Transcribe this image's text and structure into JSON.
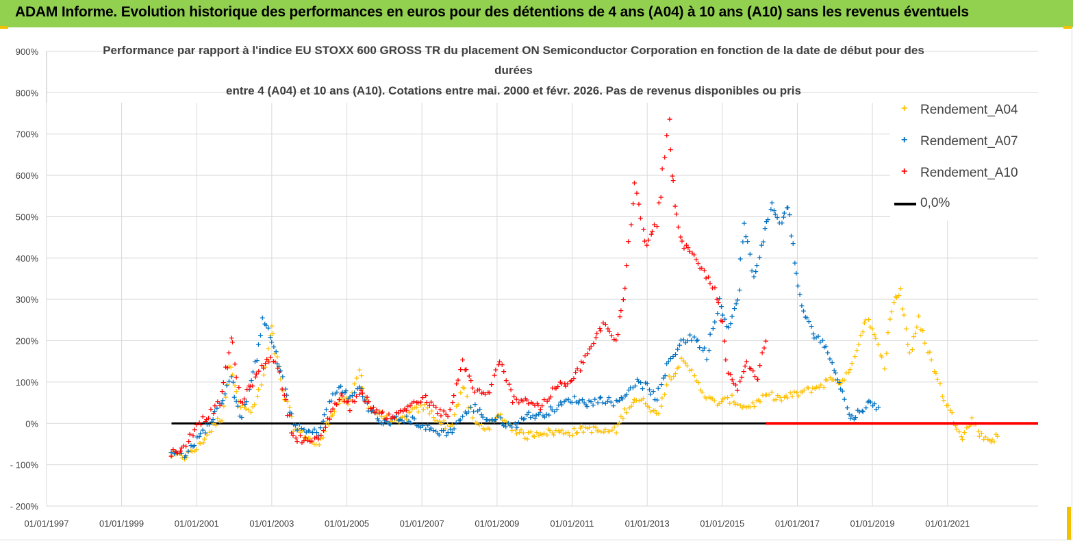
{
  "banner": {
    "title": "ADAM Informe. Evolution historique des performances en euros pour des détentions de 4 ans (A04) à 10 ans (A10) sans les revenus éventuels",
    "color": "#92d050"
  },
  "chart_data": {
    "type": "scatter",
    "title_lines": [
      "Performance par rapport à l'indice EU STOXX 600 GROSS TR  du placement ON Semiconductor Corporation en fonction de la date de début pour des",
      "durées",
      "entre 4 (A04) et 10 ans (A10). Cotations entre mai. 2000 et févr. 2026. Pas de revenus disponibles ou pris"
    ],
    "xlabel": "",
    "ylabel": "",
    "x_tick_labels": [
      "01/01/1997",
      "01/01/1999",
      "01/01/2001",
      "01/01/2003",
      "01/01/2005",
      "01/01/2007",
      "01/01/2009",
      "01/01/2011",
      "01/01/2013",
      "01/01/2015",
      "01/01/2017",
      "01/01/2019",
      "01/01/2021"
    ],
    "y_tick_labels": [
      "900%",
      "800%",
      "700%",
      "600%",
      "500%",
      "400%",
      "300%",
      "200%",
      "100%",
      "0%",
      "- 100%",
      "- 200%"
    ],
    "xlim": [
      "1997-01-01",
      "2023-06-01"
    ],
    "ylim": [
      -200,
      900
    ],
    "grid": "horizontal",
    "legend_position": "right",
    "series": [
      {
        "name": "Rendement_A04",
        "color": "#ffc000",
        "marker": "+",
        "points": [
          [
            "2000-05-01",
            -75
          ],
          [
            "2000-09-01",
            -80
          ],
          [
            "2001-01-01",
            -60
          ],
          [
            "2001-05-01",
            -20
          ],
          [
            "2001-09-01",
            20
          ],
          [
            "2001-12-01",
            150
          ],
          [
            "2002-03-01",
            40
          ],
          [
            "2002-07-01",
            30
          ],
          [
            "2002-11-01",
            130
          ],
          [
            "2003-01-01",
            230
          ],
          [
            "2003-04-01",
            100
          ],
          [
            "2003-08-01",
            -10
          ],
          [
            "2003-12-01",
            -30
          ],
          [
            "2004-04-01",
            -55
          ],
          [
            "2004-08-01",
            20
          ],
          [
            "2004-11-01",
            60
          ],
          [
            "2005-02-01",
            50
          ],
          [
            "2005-05-01",
            130
          ],
          [
            "2005-08-01",
            40
          ],
          [
            "2005-12-01",
            20
          ],
          [
            "2006-05-01",
            0
          ],
          [
            "2006-10-01",
            30
          ],
          [
            "2007-02-01",
            40
          ],
          [
            "2007-06-01",
            10
          ],
          [
            "2007-10-01",
            -10
          ],
          [
            "2008-02-01",
            90
          ],
          [
            "2008-06-01",
            0
          ],
          [
            "2008-10-01",
            -10
          ],
          [
            "2009-02-01",
            20
          ],
          [
            "2009-06-01",
            -10
          ],
          [
            "2009-10-01",
            -30
          ],
          [
            "2010-03-01",
            -20
          ],
          [
            "2010-08-01",
            -20
          ],
          [
            "2011-01-01",
            -20
          ],
          [
            "2011-06-01",
            -10
          ],
          [
            "2011-11-01",
            -20
          ],
          [
            "2012-03-01",
            -15
          ],
          [
            "2012-06-01",
            30
          ],
          [
            "2012-09-01",
            60
          ],
          [
            "2013-01-01",
            50
          ],
          [
            "2013-04-01",
            20
          ],
          [
            "2013-08-01",
            110
          ],
          [
            "2013-12-01",
            150
          ],
          [
            "2014-04-01",
            120
          ],
          [
            "2014-08-01",
            60
          ],
          [
            "2014-12-01",
            50
          ],
          [
            "2015-04-01",
            60
          ],
          [
            "2015-08-01",
            40
          ],
          [
            "2015-12-01",
            50
          ],
          [
            "2016-04-01",
            70
          ],
          [
            "2016-08-01",
            60
          ],
          [
            "2016-12-01",
            70
          ],
          [
            "2017-04-01",
            80
          ],
          [
            "2017-08-01",
            90
          ],
          [
            "2017-12-01",
            110
          ],
          [
            "2018-04-01",
            100
          ],
          [
            "2018-08-01",
            180
          ],
          [
            "2018-11-01",
            260
          ],
          [
            "2019-02-01",
            200
          ],
          [
            "2019-05-01",
            150
          ],
          [
            "2019-08-01",
            300
          ],
          [
            "2019-10-01",
            320
          ],
          [
            "2020-01-01",
            170
          ],
          [
            "2020-04-01",
            250
          ],
          [
            "2020-08-01",
            150
          ],
          [
            "2020-12-01",
            60
          ],
          [
            "2021-03-01",
            10
          ],
          [
            "2021-06-01",
            -30
          ],
          [
            "2021-09-01",
            10
          ],
          [
            "2021-12-01",
            -30
          ],
          [
            "2022-03-01",
            -40
          ],
          [
            "2022-05-01",
            -30
          ]
        ]
      },
      {
        "name": "Rendement_A07",
        "color": "#0070c0",
        "marker": "+",
        "points": [
          [
            "2000-05-01",
            -70
          ],
          [
            "2000-09-01",
            -75
          ],
          [
            "2001-01-01",
            -40
          ],
          [
            "2001-05-01",
            0
          ],
          [
            "2001-09-01",
            50
          ],
          [
            "2001-12-01",
            120
          ],
          [
            "2002-03-01",
            10
          ],
          [
            "2002-07-01",
            110
          ],
          [
            "2002-10-01",
            260
          ],
          [
            "2003-01-01",
            200
          ],
          [
            "2003-04-01",
            120
          ],
          [
            "2003-08-01",
            0
          ],
          [
            "2003-12-01",
            -20
          ],
          [
            "2004-04-01",
            -20
          ],
          [
            "2004-08-01",
            60
          ],
          [
            "2004-11-01",
            90
          ],
          [
            "2005-02-01",
            60
          ],
          [
            "2005-05-01",
            90
          ],
          [
            "2005-08-01",
            40
          ],
          [
            "2005-12-01",
            0
          ],
          [
            "2006-05-01",
            10
          ],
          [
            "2006-10-01",
            10
          ],
          [
            "2007-02-01",
            -10
          ],
          [
            "2007-06-01",
            -20
          ],
          [
            "2007-10-01",
            -20
          ],
          [
            "2008-02-01",
            20
          ],
          [
            "2008-06-01",
            40
          ],
          [
            "2008-10-01",
            10
          ],
          [
            "2009-02-01",
            10
          ],
          [
            "2009-06-01",
            -10
          ],
          [
            "2009-10-01",
            20
          ],
          [
            "2010-03-01",
            20
          ],
          [
            "2010-08-01",
            40
          ],
          [
            "2011-01-01",
            60
          ],
          [
            "2011-06-01",
            50
          ],
          [
            "2011-11-01",
            60
          ],
          [
            "2012-03-01",
            50
          ],
          [
            "2012-06-01",
            70
          ],
          [
            "2012-09-01",
            100
          ],
          [
            "2013-01-01",
            90
          ],
          [
            "2013-04-01",
            60
          ],
          [
            "2013-08-01",
            150
          ],
          [
            "2013-12-01",
            200
          ],
          [
            "2014-04-01",
            210
          ],
          [
            "2014-08-01",
            170
          ],
          [
            "2014-12-01",
            300
          ],
          [
            "2015-03-01",
            230
          ],
          [
            "2015-06-01",
            300
          ],
          [
            "2015-08-01",
            480
          ],
          [
            "2015-11-01",
            350
          ],
          [
            "2016-02-01",
            450
          ],
          [
            "2016-05-01",
            530
          ],
          [
            "2016-08-01",
            480
          ],
          [
            "2016-10-01",
            540
          ],
          [
            "2016-12-01",
            380
          ],
          [
            "2017-03-01",
            270
          ],
          [
            "2017-06-01",
            220
          ],
          [
            "2017-09-01",
            200
          ],
          [
            "2017-12-01",
            150
          ],
          [
            "2018-03-01",
            90
          ],
          [
            "2018-06-01",
            10
          ],
          [
            "2018-09-01",
            30
          ],
          [
            "2018-12-01",
            50
          ],
          [
            "2019-03-01",
            40
          ]
        ]
      },
      {
        "name": "Rendement_A10",
        "color": "#ff0000",
        "marker": "+",
        "points": [
          [
            "2000-05-01",
            -70
          ],
          [
            "2000-09-01",
            -60
          ],
          [
            "2001-01-01",
            0
          ],
          [
            "2001-05-01",
            20
          ],
          [
            "2001-09-01",
            60
          ],
          [
            "2001-12-01",
            210
          ],
          [
            "2002-03-01",
            50
          ],
          [
            "2002-07-01",
            100
          ],
          [
            "2002-11-01",
            150
          ],
          [
            "2003-02-01",
            160
          ],
          [
            "2003-05-01",
            70
          ],
          [
            "2003-08-01",
            -30
          ],
          [
            "2003-12-01",
            -40
          ],
          [
            "2004-04-01",
            -40
          ],
          [
            "2004-08-01",
            30
          ],
          [
            "2004-11-01",
            70
          ],
          [
            "2005-02-01",
            40
          ],
          [
            "2005-05-01",
            80
          ],
          [
            "2005-08-01",
            50
          ],
          [
            "2005-12-01",
            20
          ],
          [
            "2006-05-01",
            20
          ],
          [
            "2006-10-01",
            50
          ],
          [
            "2007-02-01",
            60
          ],
          [
            "2007-06-01",
            30
          ],
          [
            "2007-10-01",
            20
          ],
          [
            "2008-02-01",
            150
          ],
          [
            "2008-06-01",
            80
          ],
          [
            "2008-10-01",
            70
          ],
          [
            "2009-02-01",
            150
          ],
          [
            "2009-06-01",
            60
          ],
          [
            "2009-10-01",
            60
          ],
          [
            "2010-03-01",
            40
          ],
          [
            "2010-08-01",
            90
          ],
          [
            "2011-01-01",
            100
          ],
          [
            "2011-06-01",
            170
          ],
          [
            "2011-11-01",
            240
          ],
          [
            "2012-03-01",
            200
          ],
          [
            "2012-06-01",
            320
          ],
          [
            "2012-09-01",
            600
          ],
          [
            "2013-01-01",
            430
          ],
          [
            "2013-04-01",
            500
          ],
          [
            "2013-08-01",
            720
          ],
          [
            "2013-10-01",
            520
          ],
          [
            "2013-12-01",
            440
          ],
          [
            "2014-04-01",
            400
          ],
          [
            "2014-08-01",
            360
          ],
          [
            "2014-12-01",
            300
          ],
          [
            "2015-03-01",
            120
          ],
          [
            "2015-06-01",
            80
          ],
          [
            "2015-09-01",
            150
          ],
          [
            "2015-12-01",
            100
          ],
          [
            "2016-03-01",
            200
          ]
        ]
      },
      {
        "name": "0,0%",
        "color": "#000000",
        "marker": "line",
        "points": [
          [
            "2000-05-01",
            0
          ],
          [
            "2016-03-01",
            0
          ]
        ]
      }
    ],
    "red_zero_segment": {
      "color": "#ff0000",
      "points": [
        [
          "2016-03-01",
          0
        ],
        [
          "2023-06-01",
          0
        ]
      ]
    }
  }
}
